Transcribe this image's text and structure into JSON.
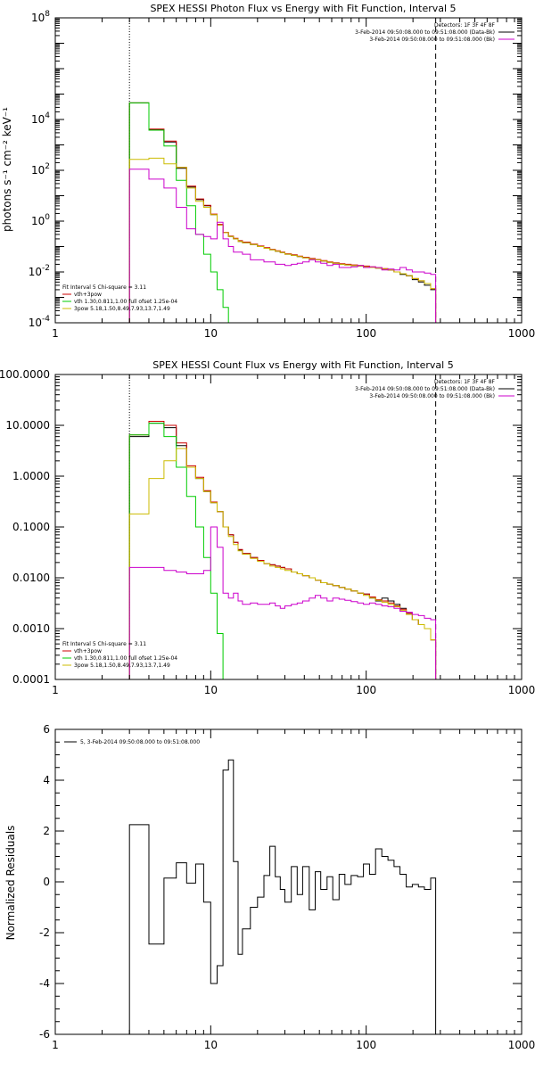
{
  "chart_data": [
    {
      "type": "line",
      "title": "SPEX HESSI Photon Flux vs Energy with Fit Function, Interval 5",
      "ylabel": "photons s⁻¹ cm⁻² keV⁻¹",
      "xscale": "log",
      "yscale": "log",
      "xlim": [
        1,
        1000
      ],
      "ylim": [
        0.0001,
        100000000
      ],
      "xticks": [
        {
          "v": 1,
          "label": "1"
        },
        {
          "v": 10,
          "label": "10"
        },
        {
          "v": 100,
          "label": "100"
        },
        {
          "v": 1000,
          "label": "1000"
        }
      ],
      "yticks": [
        {
          "v": 0.0001,
          "label": "10",
          "exp": "-4"
        },
        {
          "v": 0.01,
          "label": "10",
          "exp": "-2"
        },
        {
          "v": 1,
          "label": "10",
          "exp": "0"
        },
        {
          "v": 100,
          "label": "10",
          "exp": "2"
        },
        {
          "v": 10000,
          "label": "10",
          "exp": "4"
        },
        {
          "v": 100000000,
          "label": "10",
          "exp": "8"
        }
      ],
      "vlines": [
        3,
        280
      ],
      "legend_top_right": [
        "Detectors: 1F 3F 4F 8F",
        "3-Feb-2014 09:50:08.000 to 09:51:08.000 (Data-Bk)",
        "3-Feb-2014 09:50:08.000 to 09:51:08.000 (Bk)"
      ],
      "legend_bottom_left": [
        "Fit Interval 5   Chi-square = 3.11",
        "vth+3pow",
        "vth 1.30,0.811,1.00  full ofset 1.25e-04",
        "3pow 5.18,1.50,8.49,7.93,13.7,1.49"
      ],
      "legend_colors": [
        "#000000",
        "#cc0000",
        "#00cc00",
        "#ccbb00"
      ],
      "edges": [
        3.0,
        4.0,
        5.0,
        6.0,
        7.0,
        8.0,
        9.0,
        10.0,
        11.0,
        12.0,
        13.0,
        14.0,
        15.0,
        16.0,
        18.0,
        20.0,
        22.0,
        24.0,
        26.0,
        28.0,
        30.0,
        33.0,
        36.0,
        39.0,
        43.0,
        47.0,
        51.0,
        56.0,
        61.0,
        67.0,
        73.0,
        80.0,
        88.0,
        96.0,
        105.0,
        115.0,
        126.0,
        138.0,
        151.0,
        165.0,
        181.0,
        198.0,
        217.0,
        237.0,
        260.0,
        280.0
      ],
      "series": [
        {
          "name": "3-Feb-2014 09:50:08.000 to 09:51:08.000 (Data-Bk)",
          "color": "#000000",
          "values": [
            45000,
            4000,
            1300,
            120,
            22,
            7,
            4,
            1.8,
            0.7,
            0.35,
            0.25,
            0.2,
            0.16,
            0.14,
            0.12,
            0.1,
            0.085,
            0.075,
            0.065,
            0.058,
            0.05,
            0.045,
            0.04,
            0.036,
            0.032,
            0.03,
            0.027,
            0.024,
            0.022,
            0.02,
            0.019,
            0.018,
            0.017,
            0.016,
            0.015,
            0.014,
            0.013,
            0.012,
            0.01,
            0.008,
            0.007,
            0.005,
            0.004,
            0.003,
            0.002
          ]
        },
        {
          "name": "vth+3pow",
          "color": "#cc0000",
          "values": [
            45000,
            4200,
            1400,
            130,
            24,
            7.5,
            4.2,
            1.9,
            0.75,
            0.36,
            0.26,
            0.21,
            0.17,
            0.15,
            0.125,
            0.105,
            0.09,
            0.078,
            0.068,
            0.06,
            0.052,
            0.047,
            0.042,
            0.038,
            0.034,
            0.031,
            0.028,
            0.025,
            0.023,
            0.021,
            0.02,
            0.019,
            0.018,
            0.017,
            0.016,
            0.015,
            0.0135,
            0.012,
            0.01,
            0.0085,
            0.0072,
            0.0055,
            0.0045,
            0.0035,
            0.0022
          ]
        },
        {
          "name": "vth",
          "color": "#00cc00",
          "values": [
            45000,
            3800,
            900,
            40,
            4,
            0.3,
            0.05,
            0.01,
            0.002,
            0.0004
          ]
        },
        {
          "name": "3pow",
          "color": "#ccbb00",
          "values": [
            270,
            300,
            180,
            130,
            20,
            6,
            3.5,
            1.8,
            0.7,
            0.35,
            0.25,
            0.2,
            0.16,
            0.14,
            0.12,
            0.1,
            0.085,
            0.075,
            0.065,
            0.058,
            0.05,
            0.045,
            0.04,
            0.036,
            0.032,
            0.03,
            0.027,
            0.024,
            0.022,
            0.02,
            0.019,
            0.018,
            0.017,
            0.016,
            0.015,
            0.014,
            0.013,
            0.012,
            0.01,
            0.0085,
            0.0072,
            0.0055,
            0.0045,
            0.0035,
            0.0022
          ]
        },
        {
          "name": "3-Feb-2014 09:50:08.000 to 09:51:08.000 (Bk)",
          "color": "#cc00cc",
          "values": [
            110,
            45,
            20,
            3.5,
            0.5,
            0.3,
            0.25,
            0.2,
            0.9,
            0.2,
            0.1,
            0.06,
            0.06,
            0.05,
            0.03,
            0.03,
            0.025,
            0.025,
            0.02,
            0.02,
            0.018,
            0.02,
            0.022,
            0.025,
            0.03,
            0.025,
            0.022,
            0.018,
            0.02,
            0.015,
            0.015,
            0.016,
            0.018,
            0.015,
            0.016,
            0.015,
            0.012,
            0.013,
            0.012,
            0.015,
            0.012,
            0.01,
            0.01,
            0.009,
            0.008
          ]
        }
      ]
    },
    {
      "type": "line",
      "title": "SPEX HESSI Count Flux vs Energy with Fit Function, Interval 5",
      "ylabel": "",
      "xscale": "log",
      "yscale": "log",
      "xlim": [
        1,
        1000
      ],
      "ylim": [
        0.0001,
        100
      ],
      "xticks": [
        {
          "v": 1,
          "label": "1"
        },
        {
          "v": 10,
          "label": "10"
        },
        {
          "v": 100,
          "label": "100"
        },
        {
          "v": 1000,
          "label": "1000"
        }
      ],
      "yticks": [
        {
          "v": 0.0001,
          "label": "0.0001"
        },
        {
          "v": 0.001,
          "label": "0.0010"
        },
        {
          "v": 0.01,
          "label": "0.0100"
        },
        {
          "v": 0.1,
          "label": "0.1000"
        },
        {
          "v": 1,
          "label": "1.0000"
        },
        {
          "v": 10,
          "label": "10.0000"
        },
        {
          "v": 100,
          "label": "100.0000"
        }
      ],
      "vlines": [
        3,
        280
      ],
      "legend_top_right": [
        "Detectors: 1F 3F 4F 8F",
        "3-Feb-2014 09:50:08.000 to 09:51:08.000 (Data-Bk)",
        "3-Feb-2014 09:50:08.000 to 09:51:08.000 (Bk)"
      ],
      "legend_bottom_left": [
        "Fit Interval 5   Chi-square = 3.11",
        "vth+3pow",
        "vth 1.30,0.811,1.00  full ofset 1.25e-04",
        "3pow 5.18,1.50,8.49,7.93,13.7,1.49"
      ],
      "legend_colors": [
        "#000000",
        "#cc0000",
        "#00cc00",
        "#ccbb00"
      ],
      "edges": [
        3.0,
        4.0,
        5.0,
        6.0,
        7.0,
        8.0,
        9.0,
        10.0,
        11.0,
        12.0,
        13.0,
        14.0,
        15.0,
        16.0,
        18.0,
        20.0,
        22.0,
        24.0,
        26.0,
        28.0,
        30.0,
        33.0,
        36.0,
        39.0,
        43.0,
        47.0,
        51.0,
        56.0,
        61.0,
        67.0,
        73.0,
        80.0,
        88.0,
        96.0,
        105.0,
        115.0,
        126.0,
        138.0,
        151.0,
        165.0,
        181.0,
        198.0,
        217.0,
        237.0,
        260.0,
        280.0
      ],
      "series": [
        {
          "name": "3-Feb-2014 09:50:08.000 to 09:51:08.000 (Data-Bk)",
          "color": "#000000",
          "values": [
            6,
            11,
            9,
            4,
            1.5,
            0.9,
            0.5,
            0.3,
            0.2,
            0.1,
            0.07,
            0.05,
            0.035,
            0.03,
            0.025,
            0.022,
            0.019,
            0.018,
            0.017,
            0.016,
            0.015,
            0.013,
            0.012,
            0.011,
            0.01,
            0.009,
            0.008,
            0.0075,
            0.007,
            0.0065,
            0.006,
            0.0055,
            0.005,
            0.0048,
            0.004,
            0.0035,
            0.004,
            0.0035,
            0.003,
            0.0025,
            0.002,
            0.0015,
            0.0012,
            0.001,
            0.0006
          ]
        },
        {
          "name": "vth+3pow",
          "color": "#cc0000",
          "values": [
            6.5,
            12,
            10,
            4.5,
            1.6,
            0.95,
            0.52,
            0.31,
            0.2,
            0.1,
            0.07,
            0.05,
            0.036,
            0.03,
            0.025,
            0.022,
            0.019,
            0.018,
            0.017,
            0.016,
            0.015,
            0.013,
            0.012,
            0.011,
            0.01,
            0.009,
            0.008,
            0.0075,
            0.007,
            0.0065,
            0.006,
            0.0055,
            0.005,
            0.0048,
            0.0042,
            0.0037,
            0.0035,
            0.0032,
            0.0028,
            0.0024,
            0.002,
            0.0015,
            0.0012,
            0.001,
            0.0006
          ]
        },
        {
          "name": "vth",
          "color": "#00cc00",
          "values": [
            6.5,
            11,
            6,
            1.5,
            0.4,
            0.1,
            0.025,
            0.005,
            0.0008,
            0.0001
          ]
        },
        {
          "name": "3pow",
          "color": "#ccbb00",
          "values": [
            0.18,
            0.9,
            2,
            3.5,
            1.5,
            0.9,
            0.5,
            0.3,
            0.2,
            0.1,
            0.065,
            0.045,
            0.034,
            0.029,
            0.024,
            0.021,
            0.019,
            0.017,
            0.016,
            0.015,
            0.014,
            0.013,
            0.012,
            0.011,
            0.01,
            0.009,
            0.008,
            0.0075,
            0.007,
            0.0065,
            0.006,
            0.0055,
            0.005,
            0.0045,
            0.004,
            0.0036,
            0.0033,
            0.003,
            0.0027,
            0.0023,
            0.0019,
            0.0015,
            0.0012,
            0.001,
            0.0006
          ]
        },
        {
          "name": "3-Feb-2014 09:50:08.000 to 09:51:08.000 (Bk)",
          "color": "#cc00cc",
          "values": [
            0.016,
            0.016,
            0.014,
            0.013,
            0.012,
            0.012,
            0.014,
            0.1,
            0.04,
            0.005,
            0.004,
            0.005,
            0.0035,
            0.003,
            0.0032,
            0.003,
            0.003,
            0.0032,
            0.0028,
            0.0025,
            0.0028,
            0.003,
            0.0032,
            0.0035,
            0.004,
            0.0045,
            0.004,
            0.0035,
            0.004,
            0.0038,
            0.0036,
            0.0034,
            0.0032,
            0.003,
            0.0032,
            0.003,
            0.0028,
            0.0027,
            0.0025,
            0.0022,
            0.0021,
            0.0019,
            0.0018,
            0.0016,
            0.0015
          ]
        }
      ]
    },
    {
      "type": "line",
      "title": "",
      "ylabel": "Normalized Residuals",
      "xscale": "log",
      "yscale": "linear",
      "xlim": [
        1,
        1000
      ],
      "ylim": [
        -6,
        6
      ],
      "xticks": [
        {
          "v": 1,
          "label": "1"
        },
        {
          "v": 10,
          "label": "10"
        },
        {
          "v": 100,
          "label": "100"
        },
        {
          "v": 1000,
          "label": "1000"
        }
      ],
      "yticks": [
        {
          "v": -6,
          "label": "-6"
        },
        {
          "v": -4,
          "label": "-4"
        },
        {
          "v": -2,
          "label": "-2"
        },
        {
          "v": 0,
          "label": "0"
        },
        {
          "v": 2,
          "label": "2"
        },
        {
          "v": 4,
          "label": "4"
        },
        {
          "v": 6,
          "label": "6"
        }
      ],
      "legend_text": "5,  3-Feb-2014 09:50:08.000 to 09:51:08.000",
      "edges": [
        3.0,
        4.0,
        5.0,
        6.0,
        7.0,
        8.0,
        9.0,
        10.0,
        11.0,
        12.0,
        13.0,
        14.0,
        15.0,
        16.0,
        18.0,
        20.0,
        22.0,
        24.0,
        26.0,
        28.0,
        30.0,
        33.0,
        36.0,
        39.0,
        43.0,
        47.0,
        51.0,
        56.0,
        61.0,
        67.0,
        73.0,
        80.0,
        88.0,
        96.0,
        105.0,
        115.0,
        126.0,
        138.0,
        151.0,
        165.0,
        181.0,
        198.0,
        217.0,
        237.0,
        260.0,
        280.0
      ],
      "series": [
        {
          "name": "5,  3-Feb-2014 09:50:08.000 to 09:51:08.000",
          "color": "#000000",
          "values": [
            2.25,
            -2.45,
            0.15,
            0.75,
            -0.05,
            0.7,
            -0.8,
            -4.0,
            -3.3,
            4.4,
            4.8,
            0.8,
            -2.85,
            -1.85,
            -1.0,
            -0.6,
            0.25,
            1.4,
            0.2,
            -0.3,
            -0.8,
            0.6,
            -0.5,
            0.6,
            -1.1,
            0.4,
            -0.3,
            0.2,
            -0.7,
            0.3,
            -0.1,
            0.25,
            0.2,
            0.7,
            0.3,
            1.3,
            1.0,
            0.85,
            0.6,
            0.3,
            -0.2,
            -0.1,
            -0.2,
            -0.3,
            0.15
          ]
        }
      ]
    }
  ]
}
